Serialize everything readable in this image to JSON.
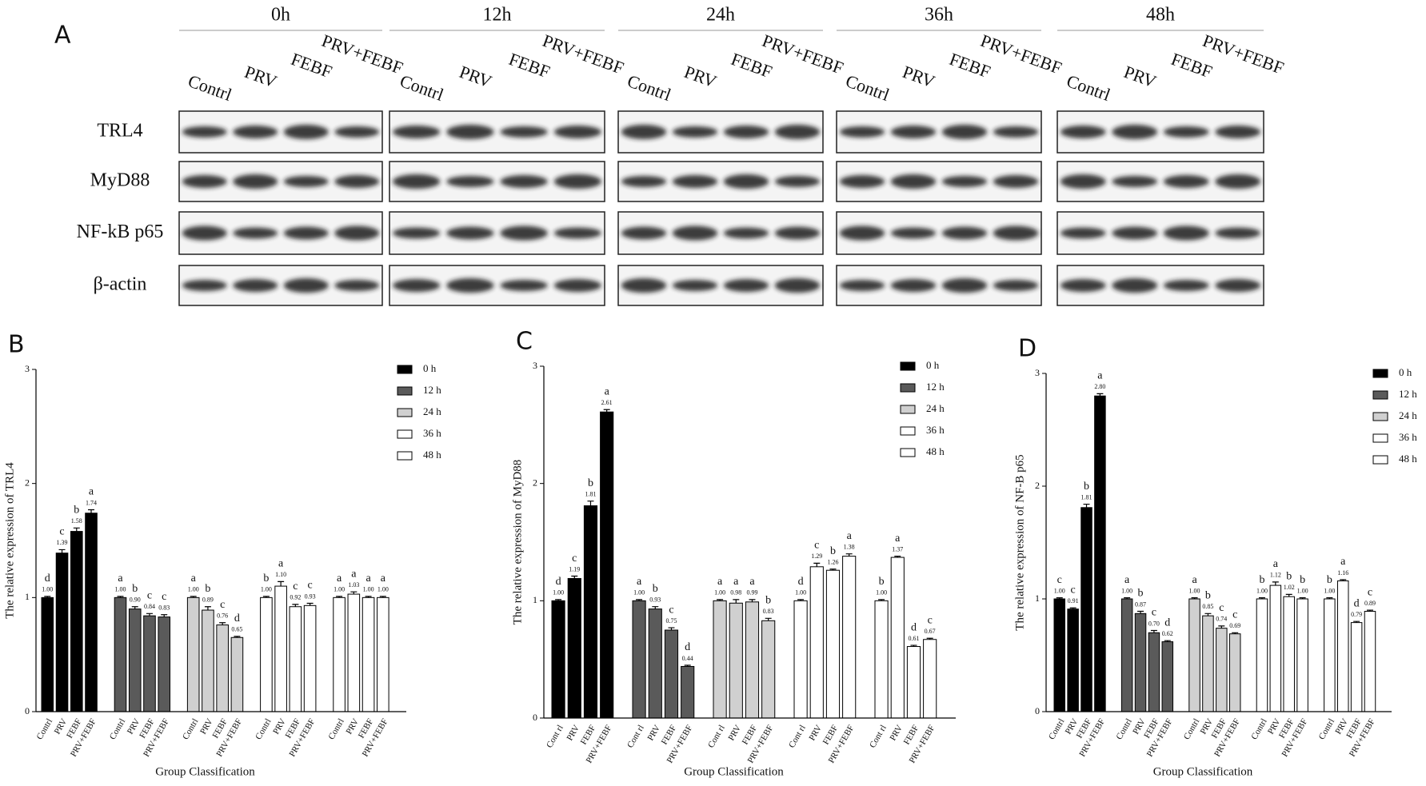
{
  "panel_a": {
    "label": "A",
    "timepoints": [
      "0h",
      "12h",
      "24h",
      "36h",
      "48h"
    ],
    "lanes": [
      "Contrl",
      "PRV",
      "FEBF",
      "PRV+FEBF"
    ],
    "proteins": [
      "TRL4",
      "MyD88",
      "NF-kB p65",
      "β-actin"
    ]
  },
  "chart_data": [
    {
      "type": "bar",
      "panel": "B",
      "y_label": "The relative expression of TRL4",
      "x_label": "Group Classification",
      "ylim": [
        0,
        3
      ],
      "yticks": [
        0,
        1,
        2,
        3
      ],
      "legend": "upper right",
      "series": [
        {
          "name": "0 h",
          "color": "#000000",
          "categories": [
            "Contrl",
            "PRV",
            "FEBF",
            "PRV+FEBF"
          ],
          "values": [
            1.0,
            1.39,
            1.58,
            1.74
          ],
          "value_labels": [
            "1.00",
            "1.39",
            "1.58",
            "1.74"
          ],
          "errors": [
            0.01,
            0.03,
            0.03,
            0.03
          ],
          "letters": [
            "d",
            "c",
            "b",
            "a"
          ]
        },
        {
          "name": "12 h",
          "color": "#5a5a5a",
          "categories": [
            "Contrl",
            "PRV",
            "FEBF",
            "PRV+FEBF"
          ],
          "values": [
            1.0,
            0.9,
            0.84,
            0.83
          ],
          "value_labels": [
            "1.00",
            "0.90",
            "0.84",
            "0.83"
          ],
          "errors": [
            0.01,
            0.02,
            0.02,
            0.02
          ],
          "letters": [
            "a",
            "b",
            "c",
            "c"
          ]
        },
        {
          "name": "24 h",
          "color": "#d0d0d0",
          "categories": [
            "Contrl",
            "PRV",
            "FEBF",
            "PRV+FEBF"
          ],
          "values": [
            1.0,
            0.89,
            0.76,
            0.65
          ],
          "value_labels": [
            "1.00",
            "0.89",
            "0.76",
            "0.65"
          ],
          "errors": [
            0.01,
            0.03,
            0.02,
            0.01
          ],
          "letters": [
            "a",
            "b",
            "c",
            "d"
          ]
        },
        {
          "name": "36 h",
          "color": "#ffffff",
          "categories": [
            "Contrl",
            "PRV",
            "FEBF",
            "PRV+FEBF"
          ],
          "values": [
            1.0,
            1.1,
            0.92,
            0.93
          ],
          "value_labels": [
            "1.00",
            "1.10",
            "0.92",
            "0.93"
          ],
          "errors": [
            0.01,
            0.04,
            0.02,
            0.02
          ],
          "letters": [
            "b",
            "a",
            "c",
            "c"
          ]
        },
        {
          "name": "48 h",
          "color": "#ffffff",
          "categories": [
            "Contrl",
            "PRV",
            "FEBF",
            "PRV+FEBF"
          ],
          "values": [
            1.0,
            1.03,
            1.0,
            1.0
          ],
          "value_labels": [
            "1.00",
            "1.03",
            "1.00",
            "1.00"
          ],
          "errors": [
            0.01,
            0.02,
            0.01,
            0.01
          ],
          "letters": [
            "a",
            "a",
            "a",
            "a"
          ]
        }
      ]
    },
    {
      "type": "bar",
      "panel": "C",
      "y_label": "The relative expression of MyD88",
      "x_label": "Group Classification",
      "ylim": [
        0,
        3
      ],
      "yticks": [
        0,
        1,
        2,
        3
      ],
      "legend": "upper right",
      "series": [
        {
          "name": "0 h",
          "color": "#000000",
          "categories": [
            "Cont rl",
            "PRV",
            "FEBF",
            "PRV+FEBF"
          ],
          "values": [
            1.0,
            1.19,
            1.81,
            2.61
          ],
          "value_labels": [
            "1.00",
            "1.19",
            "1.81",
            "2.61"
          ],
          "errors": [
            0.01,
            0.02,
            0.04,
            0.02
          ],
          "letters": [
            "d",
            "c",
            "b",
            "a"
          ]
        },
        {
          "name": "12 h",
          "color": "#5a5a5a",
          "categories": [
            "Cont rl",
            "PRV",
            "FEBF",
            "PRV+FEBF"
          ],
          "values": [
            1.0,
            0.93,
            0.75,
            0.44
          ],
          "value_labels": [
            "1.00",
            "0.93",
            "0.75",
            "0.44"
          ],
          "errors": [
            0.01,
            0.02,
            0.02,
            0.01
          ],
          "letters": [
            "a",
            "b",
            "c",
            "d"
          ]
        },
        {
          "name": "24 h",
          "color": "#d0d0d0",
          "categories": [
            "Cont rl",
            "PRV",
            "FEBF",
            "PRV+FEBF"
          ],
          "values": [
            1.0,
            0.98,
            0.99,
            0.83
          ],
          "value_labels": [
            "1.00",
            "0.98",
            "0.99",
            "0.83"
          ],
          "errors": [
            0.01,
            0.03,
            0.02,
            0.02
          ],
          "letters": [
            "a",
            "a",
            "a",
            "b"
          ]
        },
        {
          "name": "36 h",
          "color": "#ffffff",
          "categories": [
            "Cont rl",
            "PRV",
            "FEBF",
            "PRV+FEBF"
          ],
          "values": [
            1.0,
            1.29,
            1.26,
            1.38
          ],
          "value_labels": [
            "1.00",
            "1.29",
            "1.26",
            "1.38"
          ],
          "errors": [
            0.01,
            0.03,
            0.01,
            0.02
          ],
          "letters": [
            "d",
            "c",
            "b",
            "a"
          ]
        },
        {
          "name": "48 h",
          "color": "#ffffff",
          "categories": [
            "Cont rl",
            "PRV",
            "FEBF",
            "PRV+FEBF"
          ],
          "values": [
            1.0,
            1.37,
            0.61,
            0.67
          ],
          "value_labels": [
            "1.00",
            "1.37",
            "0.61",
            "0.67"
          ],
          "errors": [
            0.01,
            0.01,
            0.01,
            0.01
          ],
          "letters": [
            "b",
            "a",
            "d",
            "c"
          ]
        }
      ]
    },
    {
      "type": "bar",
      "panel": "D",
      "y_label": "The relative expression of NF-B p65",
      "x_label": "Group Classification",
      "ylim": [
        0,
        3
      ],
      "yticks": [
        0,
        1,
        2,
        3
      ],
      "legend": "upper right",
      "series": [
        {
          "name": "0 h",
          "color": "#000000",
          "categories": [
            "Contrl",
            "PRV",
            "FEBF",
            "PRV+FEBF"
          ],
          "values": [
            1.0,
            0.91,
            1.81,
            2.8
          ],
          "value_labels": [
            "1.00",
            "0.91",
            "1.81",
            "2.80"
          ],
          "errors": [
            0.01,
            0.01,
            0.03,
            0.02
          ],
          "letters": [
            "c",
            "c",
            "b",
            "a"
          ]
        },
        {
          "name": "12 h",
          "color": "#5a5a5a",
          "categories": [
            "Contrl",
            "PRV",
            "FEBF",
            "PRV+FEBF"
          ],
          "values": [
            1.0,
            0.87,
            0.7,
            0.62
          ],
          "value_labels": [
            "1.00",
            "0.87",
            "0.70",
            "0.62"
          ],
          "errors": [
            0.01,
            0.02,
            0.02,
            0.01
          ],
          "letters": [
            "a",
            "b",
            "c",
            "d"
          ]
        },
        {
          "name": "24 h",
          "color": "#d0d0d0",
          "categories": [
            "Contrl",
            "PRV",
            "FEBF",
            "PRV+FEBF"
          ],
          "values": [
            1.0,
            0.85,
            0.74,
            0.69
          ],
          "value_labels": [
            "1.00",
            "0.85",
            "0.74",
            "0.69"
          ],
          "errors": [
            0.01,
            0.02,
            0.02,
            0.01
          ],
          "letters": [
            "a",
            "b",
            "c",
            "c"
          ]
        },
        {
          "name": "36 h",
          "color": "#ffffff",
          "categories": [
            "Contrl",
            "PRV",
            "FEBF",
            "PRV+FEBF"
          ],
          "values": [
            1.0,
            1.12,
            1.02,
            1.0
          ],
          "value_labels": [
            "1.00",
            "1.12",
            "1.02",
            "1.00"
          ],
          "errors": [
            0.01,
            0.03,
            0.02,
            0.01
          ],
          "letters": [
            "b",
            "a",
            "b",
            "b"
          ]
        },
        {
          "name": "48 h",
          "color": "#ffffff",
          "categories": [
            "Contrl",
            "PRV",
            "FEBF",
            "PRV+FEBF"
          ],
          "values": [
            1.0,
            1.16,
            0.79,
            0.89
          ],
          "value_labels": [
            "1.00",
            "1.16",
            "0.79",
            "0.89"
          ],
          "errors": [
            0.01,
            0.01,
            0.01,
            0.01
          ],
          "letters": [
            "b",
            "a",
            "d",
            "c"
          ]
        }
      ]
    }
  ]
}
